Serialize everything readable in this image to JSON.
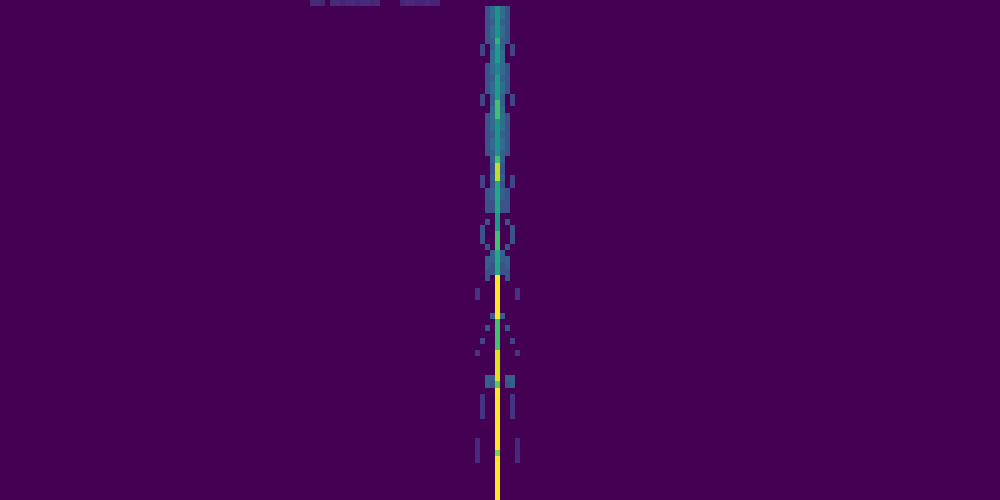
{
  "chart_data": {
    "type": "heatmap",
    "color": "viridis",
    "tick_labels": false,
    "xlim": [
      0,
      200
    ],
    "ylim": [
      0,
      80
    ],
    "zlim": [
      0,
      1
    ],
    "cells": [
      [
        62,
        0,
        0.12
      ],
      [
        63,
        0,
        0.12
      ],
      [
        64,
        0,
        0.1
      ],
      [
        66,
        0,
        0.12
      ],
      [
        67,
        0,
        0.12
      ],
      [
        68,
        0,
        0.1
      ],
      [
        69,
        0,
        0.12
      ],
      [
        70,
        0,
        0.12
      ],
      [
        71,
        0,
        0.1
      ],
      [
        72,
        0,
        0.12
      ],
      [
        73,
        0,
        0.12
      ],
      [
        74,
        0,
        0.1
      ],
      [
        75,
        0,
        0.12
      ],
      [
        80,
        0,
        0.1
      ],
      [
        81,
        0,
        0.12
      ],
      [
        82,
        0,
        0.12
      ],
      [
        83,
        0,
        0.1
      ],
      [
        84,
        0,
        0.1
      ],
      [
        85,
        0,
        0.12
      ],
      [
        86,
        0,
        0.1
      ],
      [
        87,
        0,
        0.1
      ],
      [
        99,
        1,
        0.5
      ],
      [
        99,
        2,
        0.5
      ],
      [
        99,
        3,
        0.5
      ],
      [
        99,
        4,
        0.5
      ],
      [
        99,
        5,
        0.5
      ],
      [
        99,
        6,
        0.65
      ],
      [
        99,
        7,
        0.55
      ],
      [
        99,
        8,
        0.55
      ],
      [
        99,
        9,
        0.55
      ],
      [
        99,
        10,
        0.45
      ],
      [
        99,
        11,
        0.45
      ],
      [
        99,
        12,
        0.55
      ],
      [
        99,
        13,
        0.55
      ],
      [
        99,
        14,
        0.55
      ],
      [
        99,
        15,
        0.55
      ],
      [
        99,
        16,
        0.7
      ],
      [
        99,
        17,
        0.7
      ],
      [
        99,
        18,
        0.7
      ],
      [
        99,
        19,
        0.5
      ],
      [
        99,
        20,
        0.5
      ],
      [
        99,
        21,
        0.5
      ],
      [
        99,
        22,
        0.5
      ],
      [
        99,
        23,
        0.5
      ],
      [
        99,
        24,
        0.5
      ],
      [
        99,
        25,
        0.7
      ],
      [
        99,
        26,
        0.9
      ],
      [
        99,
        27,
        0.9
      ],
      [
        99,
        28,
        0.9
      ],
      [
        99,
        29,
        0.6
      ],
      [
        99,
        30,
        0.6
      ],
      [
        99,
        31,
        0.6
      ],
      [
        99,
        32,
        0.6
      ],
      [
        99,
        33,
        0.6
      ],
      [
        99,
        34,
        0.55
      ],
      [
        99,
        35,
        0.55
      ],
      [
        99,
        36,
        0.55
      ],
      [
        99,
        37,
        0.7
      ],
      [
        99,
        38,
        0.7
      ],
      [
        99,
        39,
        0.7
      ],
      [
        99,
        40,
        0.6
      ],
      [
        99,
        41,
        0.6
      ],
      [
        99,
        42,
        0.6
      ],
      [
        99,
        43,
        0.6
      ],
      [
        99,
        44,
        1
      ],
      [
        99,
        45,
        1
      ],
      [
        99,
        46,
        1
      ],
      [
        99,
        47,
        1
      ],
      [
        99,
        48,
        1
      ],
      [
        99,
        49,
        1
      ],
      [
        99,
        50,
        1
      ],
      [
        99,
        51,
        0.7
      ],
      [
        99,
        52,
        0.7
      ],
      [
        99,
        53,
        0.7
      ],
      [
        99,
        54,
        0.7
      ],
      [
        99,
        55,
        0.7
      ],
      [
        99,
        56,
        0.95
      ],
      [
        99,
        57,
        0.95
      ],
      [
        99,
        58,
        0.95
      ],
      [
        99,
        59,
        0.95
      ],
      [
        99,
        60,
        0.95
      ],
      [
        99,
        61,
        0.75
      ],
      [
        99,
        62,
        1
      ],
      [
        99,
        63,
        1
      ],
      [
        99,
        64,
        1
      ],
      [
        99,
        65,
        1
      ],
      [
        99,
        66,
        1
      ],
      [
        99,
        67,
        1
      ],
      [
        99,
        68,
        1
      ],
      [
        99,
        69,
        1
      ],
      [
        99,
        70,
        1
      ],
      [
        99,
        71,
        1
      ],
      [
        99,
        72,
        0.8
      ],
      [
        99,
        73,
        1
      ],
      [
        99,
        74,
        1
      ],
      [
        99,
        75,
        1
      ],
      [
        99,
        76,
        1
      ],
      [
        99,
        77,
        1
      ],
      [
        99,
        78,
        1
      ],
      [
        99,
        79,
        1
      ],
      [
        98,
        1,
        0.35
      ],
      [
        98,
        2,
        0.35
      ],
      [
        98,
        3,
        0.3
      ],
      [
        98,
        4,
        0.35
      ],
      [
        98,
        5,
        0.35
      ],
      [
        98,
        6,
        0.3
      ],
      [
        98,
        7,
        0.3
      ],
      [
        98,
        8,
        0.35
      ],
      [
        98,
        9,
        0.35
      ],
      [
        98,
        10,
        0.35
      ],
      [
        98,
        11,
        0.35
      ],
      [
        98,
        12,
        0.3
      ],
      [
        98,
        13,
        0.35
      ],
      [
        98,
        14,
        0.35
      ],
      [
        98,
        15,
        0.3
      ],
      [
        98,
        16,
        0.3
      ],
      [
        98,
        17,
        0.35
      ],
      [
        98,
        18,
        0.35
      ],
      [
        98,
        19,
        0.35
      ],
      [
        98,
        20,
        0.35
      ],
      [
        98,
        21,
        0.3
      ],
      [
        98,
        22,
        0.35
      ],
      [
        98,
        23,
        0.35
      ],
      [
        98,
        24,
        0.3
      ],
      [
        98,
        25,
        0.3
      ],
      [
        98,
        26,
        0.25
      ],
      [
        98,
        27,
        0.25
      ],
      [
        98,
        28,
        0.3
      ],
      [
        100,
        1,
        0.35
      ],
      [
        100,
        2,
        0.35
      ],
      [
        100,
        3,
        0.3
      ],
      [
        100,
        4,
        0.35
      ],
      [
        100,
        5,
        0.35
      ],
      [
        100,
        6,
        0.3
      ],
      [
        100,
        7,
        0.3
      ],
      [
        100,
        8,
        0.35
      ],
      [
        100,
        9,
        0.35
      ],
      [
        100,
        10,
        0.35
      ],
      [
        100,
        11,
        0.35
      ],
      [
        100,
        12,
        0.3
      ],
      [
        100,
        13,
        0.35
      ],
      [
        100,
        14,
        0.35
      ],
      [
        100,
        15,
        0.3
      ],
      [
        100,
        16,
        0.3
      ],
      [
        100,
        17,
        0.35
      ],
      [
        100,
        18,
        0.35
      ],
      [
        100,
        19,
        0.35
      ],
      [
        100,
        20,
        0.35
      ],
      [
        100,
        21,
        0.3
      ],
      [
        100,
        22,
        0.35
      ],
      [
        100,
        23,
        0.35
      ],
      [
        100,
        24,
        0.3
      ],
      [
        100,
        25,
        0.3
      ],
      [
        100,
        26,
        0.25
      ],
      [
        100,
        27,
        0.25
      ],
      [
        100,
        28,
        0.3
      ],
      [
        98,
        29,
        0.25
      ],
      [
        98,
        30,
        0.3
      ],
      [
        98,
        31,
        0.3
      ],
      [
        98,
        32,
        0.25
      ],
      [
        98,
        33,
        0.25
      ],
      [
        100,
        29,
        0.25
      ],
      [
        100,
        30,
        0.3
      ],
      [
        100,
        31,
        0.3
      ],
      [
        100,
        32,
        0.25
      ],
      [
        100,
        33,
        0.25
      ],
      [
        98,
        40,
        0.3
      ],
      [
        98,
        41,
        0.3
      ],
      [
        98,
        42,
        0.25
      ],
      [
        98,
        43,
        0.25
      ],
      [
        100,
        40,
        0.3
      ],
      [
        100,
        41,
        0.3
      ],
      [
        100,
        42,
        0.25
      ],
      [
        100,
        43,
        0.25
      ],
      [
        97,
        1,
        0.25
      ],
      [
        97,
        2,
        0.25
      ],
      [
        97,
        3,
        0.25
      ],
      [
        97,
        4,
        0.25
      ],
      [
        97,
        5,
        0.25
      ],
      [
        97,
        6,
        0.25
      ],
      [
        97,
        10,
        0.25
      ],
      [
        97,
        11,
        0.25
      ],
      [
        97,
        12,
        0.25
      ],
      [
        97,
        13,
        0.25
      ],
      [
        97,
        14,
        0.25
      ],
      [
        97,
        18,
        0.25
      ],
      [
        97,
        19,
        0.25
      ],
      [
        97,
        20,
        0.25
      ],
      [
        97,
        21,
        0.25
      ],
      [
        97,
        22,
        0.25
      ],
      [
        97,
        23,
        0.25
      ],
      [
        97,
        24,
        0.25
      ],
      [
        97,
        30,
        0.25
      ],
      [
        97,
        31,
        0.25
      ],
      [
        97,
        32,
        0.25
      ],
      [
        97,
        33,
        0.25
      ],
      [
        101,
        1,
        0.25
      ],
      [
        101,
        2,
        0.25
      ],
      [
        101,
        3,
        0.25
      ],
      [
        101,
        4,
        0.25
      ],
      [
        101,
        5,
        0.25
      ],
      [
        101,
        6,
        0.25
      ],
      [
        101,
        10,
        0.25
      ],
      [
        101,
        11,
        0.25
      ],
      [
        101,
        12,
        0.25
      ],
      [
        101,
        13,
        0.25
      ],
      [
        101,
        14,
        0.25
      ],
      [
        101,
        18,
        0.25
      ],
      [
        101,
        19,
        0.25
      ],
      [
        101,
        20,
        0.25
      ],
      [
        101,
        21,
        0.25
      ],
      [
        101,
        22,
        0.25
      ],
      [
        101,
        23,
        0.25
      ],
      [
        101,
        24,
        0.25
      ],
      [
        101,
        30,
        0.25
      ],
      [
        101,
        31,
        0.25
      ],
      [
        101,
        32,
        0.25
      ],
      [
        101,
        33,
        0.25
      ],
      [
        96,
        7,
        0.2
      ],
      [
        96,
        8,
        0.2
      ],
      [
        102,
        7,
        0.2
      ],
      [
        102,
        8,
        0.2
      ],
      [
        96,
        15,
        0.2
      ],
      [
        96,
        16,
        0.2
      ],
      [
        102,
        15,
        0.2
      ],
      [
        102,
        16,
        0.2
      ],
      [
        96,
        28,
        0.2
      ],
      [
        96,
        29,
        0.2
      ],
      [
        102,
        28,
        0.2
      ],
      [
        102,
        29,
        0.2
      ],
      [
        97,
        35,
        0.25
      ],
      [
        101,
        35,
        0.25
      ],
      [
        96,
        36,
        0.25
      ],
      [
        96,
        37,
        0.25
      ],
      [
        96,
        38,
        0.25
      ],
      [
        102,
        36,
        0.25
      ],
      [
        102,
        37,
        0.25
      ],
      [
        102,
        38,
        0.25
      ],
      [
        97,
        39,
        0.25
      ],
      [
        101,
        39,
        0.25
      ],
      [
        97,
        41,
        0.3
      ],
      [
        97,
        42,
        0.3
      ],
      [
        97,
        43,
        0.25
      ],
      [
        97,
        44,
        0.25
      ],
      [
        101,
        41,
        0.3
      ],
      [
        101,
        42,
        0.3
      ],
      [
        101,
        43,
        0.25
      ],
      [
        101,
        44,
        0.25
      ],
      [
        95,
        46,
        0.15
      ],
      [
        95,
        47,
        0.15
      ],
      [
        103,
        46,
        0.15
      ],
      [
        103,
        47,
        0.15
      ],
      [
        98,
        50,
        0.3
      ],
      [
        100,
        50,
        0.3
      ],
      [
        97,
        52,
        0.25
      ],
      [
        101,
        52,
        0.25
      ],
      [
        96,
        54,
        0.2
      ],
      [
        102,
        54,
        0.2
      ],
      [
        95,
        56,
        0.15
      ],
      [
        103,
        56,
        0.15
      ],
      [
        97,
        60,
        0.3
      ],
      [
        98,
        60,
        0.3
      ],
      [
        101,
        60,
        0.3
      ],
      [
        102,
        60,
        0.3
      ],
      [
        97,
        61,
        0.3
      ],
      [
        98,
        61,
        0.25
      ],
      [
        101,
        61,
        0.25
      ],
      [
        102,
        61,
        0.3
      ],
      [
        96,
        63,
        0.15
      ],
      [
        96,
        64,
        0.15
      ],
      [
        96,
        65,
        0.15
      ],
      [
        96,
        66,
        0.15
      ],
      [
        102,
        63,
        0.15
      ],
      [
        102,
        64,
        0.15
      ],
      [
        102,
        65,
        0.15
      ],
      [
        102,
        66,
        0.15
      ],
      [
        95,
        70,
        0.12
      ],
      [
        95,
        71,
        0.12
      ],
      [
        95,
        72,
        0.12
      ],
      [
        95,
        73,
        0.12
      ],
      [
        103,
        70,
        0.12
      ],
      [
        103,
        71,
        0.12
      ],
      [
        103,
        72,
        0.12
      ],
      [
        103,
        73,
        0.12
      ]
    ]
  }
}
